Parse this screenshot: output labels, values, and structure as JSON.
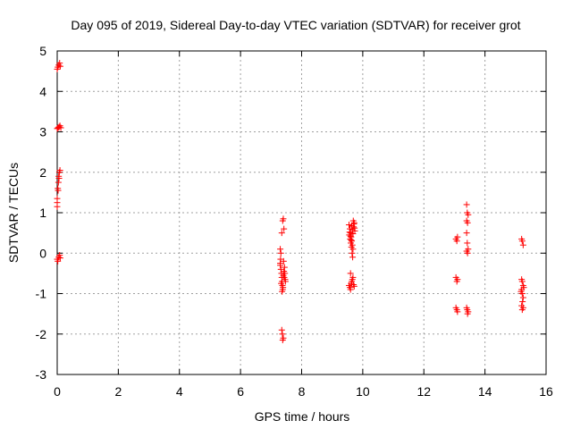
{
  "chart_data": {
    "type": "scatter",
    "title": "Day 095 of 2019, Sidereal Day-to-day VTEC variation (SDTVAR) for receiver grot",
    "xlabel": "GPS time / hours",
    "ylabel": "SDTVAR / TECUs",
    "xlim": [
      0,
      16
    ],
    "ylim": [
      -3,
      5
    ],
    "xticks": [
      "0",
      "2",
      "4",
      "6",
      "8",
      "10",
      "12",
      "14",
      "16"
    ],
    "yticks": [
      "-3",
      "-2",
      "-1",
      "0",
      "1",
      "2",
      "3",
      "4",
      "5"
    ],
    "grid": true,
    "marker": "+",
    "color": "#ff0000",
    "series": [
      {
        "name": "SDTVAR",
        "points": [
          [
            0.0,
            4.55
          ],
          [
            0.02,
            4.6
          ],
          [
            0.05,
            4.65
          ],
          [
            0.08,
            4.7
          ],
          [
            0.1,
            4.62
          ],
          [
            0.0,
            3.08
          ],
          [
            0.03,
            3.1
          ],
          [
            0.06,
            3.12
          ],
          [
            0.09,
            3.15
          ],
          [
            0.12,
            3.1
          ],
          [
            0.0,
            1.25
          ],
          [
            0.0,
            1.15
          ],
          [
            0.0,
            1.35
          ],
          [
            0.02,
            1.6
          ],
          [
            0.04,
            1.75
          ],
          [
            0.05,
            1.9
          ],
          [
            0.07,
            2.0
          ],
          [
            0.09,
            2.05
          ],
          [
            0.03,
            1.55
          ],
          [
            0.06,
            1.85
          ],
          [
            0.0,
            -0.15
          ],
          [
            0.02,
            -0.2
          ],
          [
            0.05,
            -0.1
          ],
          [
            0.08,
            -0.05
          ],
          [
            0.1,
            -0.12
          ],
          [
            7.3,
            0.1
          ],
          [
            7.32,
            0.0
          ],
          [
            7.35,
            0.5
          ],
          [
            7.38,
            0.8
          ],
          [
            7.4,
            0.85
          ],
          [
            7.42,
            0.6
          ],
          [
            7.3,
            -0.3
          ],
          [
            7.32,
            -0.4
          ],
          [
            7.34,
            -0.5
          ],
          [
            7.35,
            -0.6
          ],
          [
            7.36,
            -0.7
          ],
          [
            7.37,
            -0.8
          ],
          [
            7.38,
            -0.9
          ],
          [
            7.4,
            -0.55
          ],
          [
            7.42,
            -0.45
          ],
          [
            7.44,
            -0.35
          ],
          [
            7.46,
            -0.65
          ],
          [
            7.3,
            -0.25
          ],
          [
            7.33,
            -0.75
          ],
          [
            7.36,
            -0.95
          ],
          [
            7.39,
            -0.85
          ],
          [
            7.41,
            -0.2
          ],
          [
            7.45,
            -0.5
          ],
          [
            7.47,
            -0.7
          ],
          [
            7.35,
            -1.9
          ],
          [
            7.37,
            -2.0
          ],
          [
            7.4,
            -2.1
          ],
          [
            7.38,
            -2.15
          ],
          [
            7.31,
            -0.15
          ],
          [
            7.43,
            -0.6
          ],
          [
            9.55,
            0.7
          ],
          [
            9.58,
            0.6
          ],
          [
            9.6,
            0.5
          ],
          [
            9.62,
            0.4
          ],
          [
            9.64,
            0.3
          ],
          [
            9.66,
            0.2
          ],
          [
            9.68,
            0.1
          ],
          [
            9.7,
            0.65
          ],
          [
            9.72,
            0.75
          ],
          [
            9.74,
            0.55
          ],
          [
            9.56,
            0.45
          ],
          [
            9.59,
            0.35
          ],
          [
            9.61,
            0.25
          ],
          [
            9.63,
            0.15
          ],
          [
            9.65,
            0.0
          ],
          [
            9.67,
            -0.1
          ],
          [
            9.69,
            0.8
          ],
          [
            9.71,
            0.72
          ],
          [
            9.73,
            0.62
          ],
          [
            9.57,
            0.52
          ],
          [
            9.6,
            0.42
          ],
          [
            9.62,
            0.32
          ],
          [
            9.64,
            0.68
          ],
          [
            9.66,
            0.58
          ],
          [
            9.68,
            0.48
          ],
          [
            9.55,
            -0.8
          ],
          [
            9.58,
            -0.85
          ],
          [
            9.6,
            -0.9
          ],
          [
            9.62,
            -0.75
          ],
          [
            9.64,
            -0.7
          ],
          [
            9.66,
            -0.65
          ],
          [
            9.68,
            -0.6
          ],
          [
            9.6,
            -0.5
          ],
          [
            9.7,
            -0.78
          ],
          [
            9.72,
            -0.82
          ],
          [
            13.05,
            0.35
          ],
          [
            13.08,
            0.3
          ],
          [
            13.1,
            0.4
          ],
          [
            13.05,
            -0.6
          ],
          [
            13.08,
            -0.7
          ],
          [
            13.1,
            -0.65
          ],
          [
            13.05,
            -1.35
          ],
          [
            13.08,
            -1.4
          ],
          [
            13.1,
            -1.45
          ],
          [
            13.4,
            1.2
          ],
          [
            13.42,
            1.0
          ],
          [
            13.45,
            0.95
          ],
          [
            13.4,
            0.8
          ],
          [
            13.43,
            0.75
          ],
          [
            13.4,
            0.5
          ],
          [
            13.42,
            0.25
          ],
          [
            13.45,
            0.1
          ],
          [
            13.4,
            0.05
          ],
          [
            13.43,
            0.0
          ],
          [
            13.4,
            -1.35
          ],
          [
            13.42,
            -1.4
          ],
          [
            13.45,
            -1.45
          ],
          [
            13.43,
            -1.5
          ],
          [
            15.2,
            0.35
          ],
          [
            15.22,
            0.3
          ],
          [
            15.25,
            0.2
          ],
          [
            15.2,
            -0.65
          ],
          [
            15.22,
            -0.7
          ],
          [
            15.25,
            -0.8
          ],
          [
            15.2,
            -0.9
          ],
          [
            15.22,
            -1.0
          ],
          [
            15.25,
            -1.1
          ],
          [
            15.2,
            -1.3
          ],
          [
            15.22,
            -1.4
          ],
          [
            15.25,
            -1.35
          ],
          [
            15.18,
            -0.95
          ],
          [
            15.27,
            -0.85
          ],
          [
            15.23,
            -1.2
          ]
        ]
      }
    ]
  }
}
